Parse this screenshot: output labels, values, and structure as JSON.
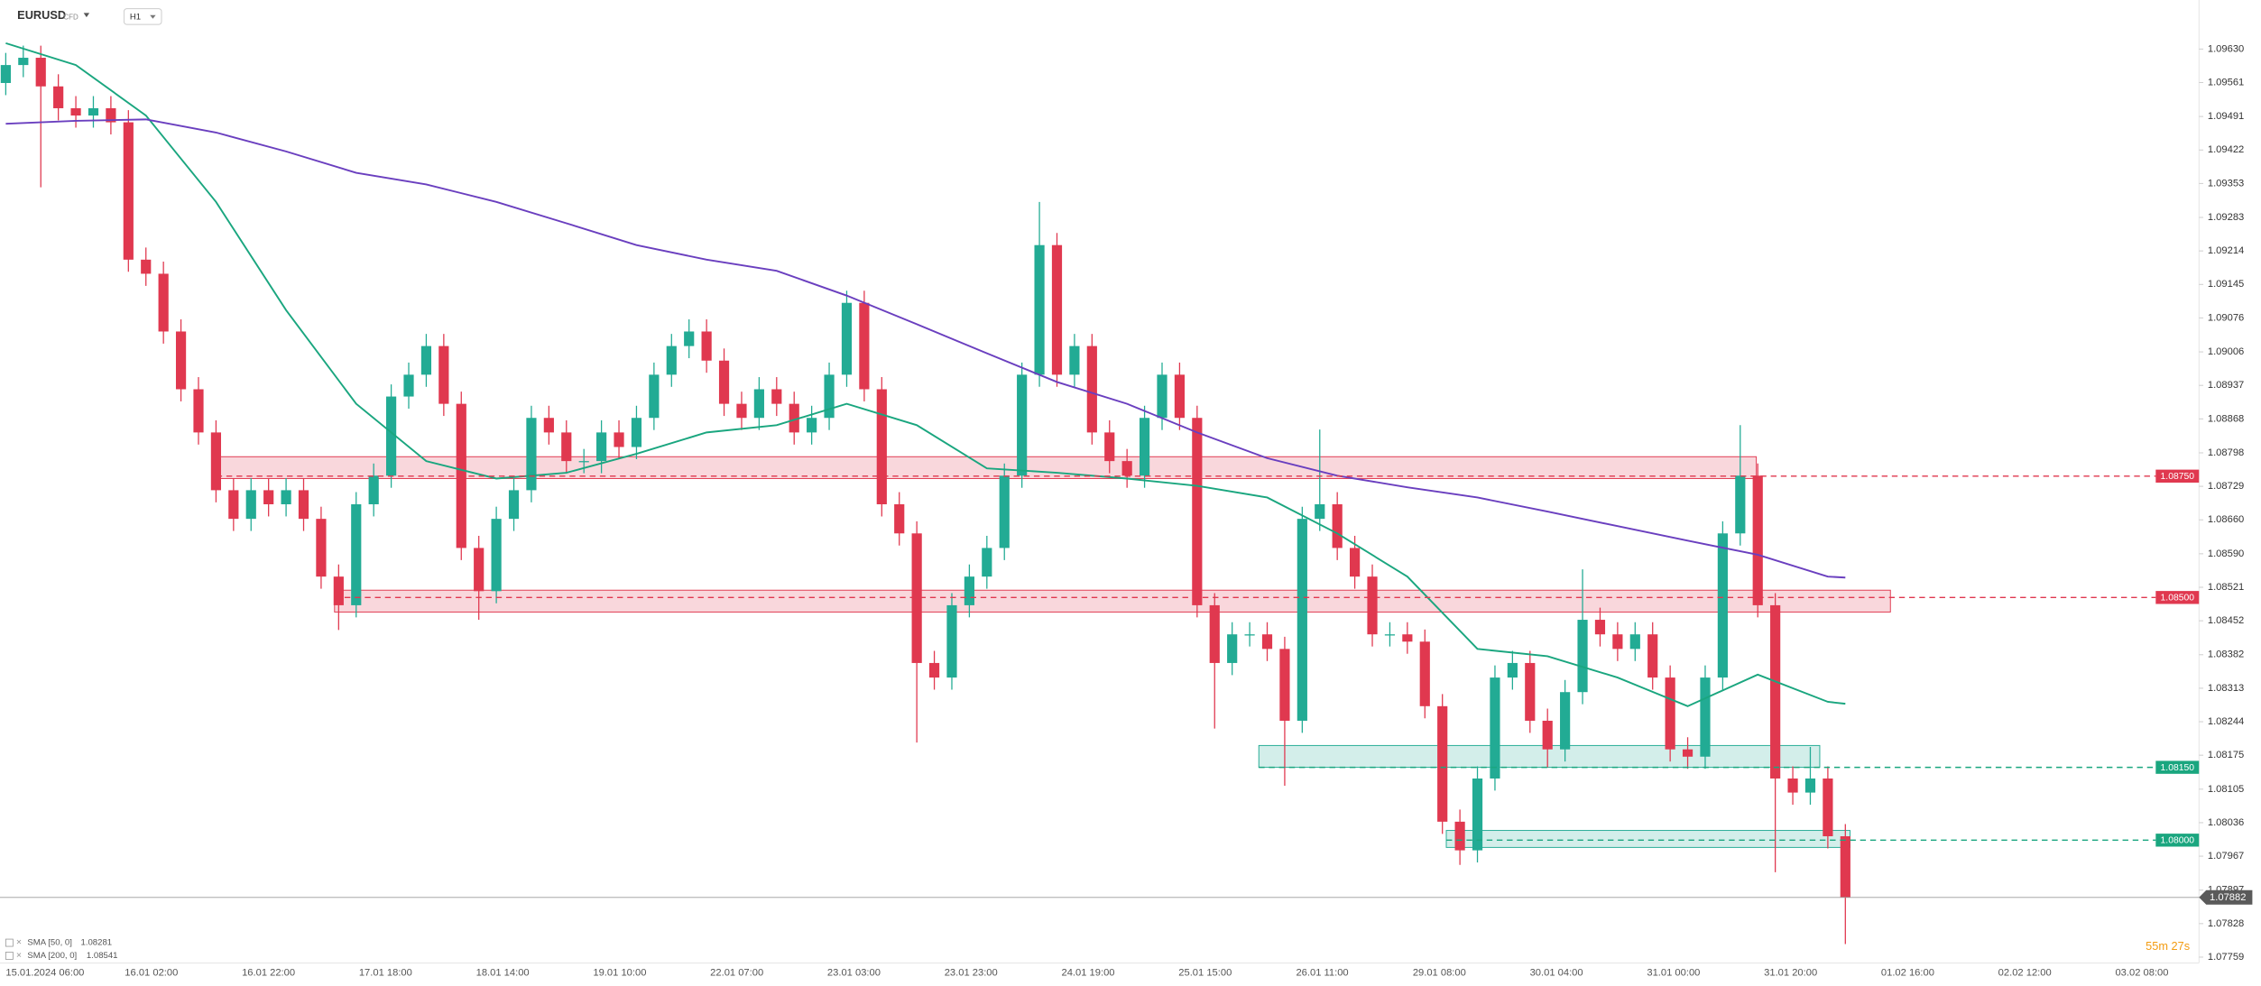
{
  "chart_data": {
    "type": "candlestick",
    "symbol": "EURUSD",
    "instrument": "CFD",
    "timeframe": "H1",
    "countdown": "55m 27s",
    "up_color": "#22ab94",
    "down_color": "#e0384f",
    "ylim": [
      1.07747,
      1.09731
    ],
    "yticks": [
      {
        "value": 1.0963,
        "label": "1.09630"
      },
      1.09561,
      1.09491,
      1.09422,
      1.09353,
      1.09283,
      1.09214,
      1.09145,
      1.09076,
      1.09006,
      1.08937,
      1.08868,
      1.08798,
      1.08729,
      {
        "value": 1.0866,
        "label": "1.08660"
      },
      {
        "value": 1.0859,
        "label": "1.08590"
      },
      1.08521,
      1.08452,
      1.08382,
      1.08313,
      1.08244,
      1.08175,
      1.08105,
      1.08036,
      1.07967,
      1.07897,
      1.07828,
      1.07759
    ],
    "x_labels": [
      "15.01.2024 06:00",
      "16.01 02:00",
      "16.01 22:00",
      "17.01 18:00",
      "18.01 14:00",
      "19.01 10:00",
      "22.01 07:00",
      "23.01 03:00",
      "23.01 23:00",
      "24.01 19:00",
      "25.01 15:00",
      "26.01 11:00",
      "29.01 08:00",
      "30.01 04:00",
      "31.01 00:00",
      "31.01 20:00",
      "01.02 16:00",
      "02.02 12:00",
      "03.02 08:00"
    ],
    "open": [
      1.0956,
      1.09597,
      1.09612,
      1.09553,
      1.09508,
      1.09493,
      1.09508,
      1.09479,
      1.09196,
      1.09167,
      1.09048,
      1.08929,
      1.0884,
      1.08721,
      1.08662,
      1.08721,
      1.08692,
      1.08721,
      1.08662,
      1.08543,
      1.08484,
      1.08692,
      1.08751,
      1.08914,
      1.08959,
      1.09018,
      1.08899,
      1.08602,
      1.08513,
      1.08662,
      1.08721,
      1.0887,
      1.0884,
      1.08781,
      1.08781,
      1.0884,
      1.0881,
      1.0887,
      1.08959,
      1.09018,
      1.09048,
      1.08988,
      1.08899,
      1.0887,
      1.08929,
      1.08899,
      1.0884,
      1.0887,
      1.08959,
      1.09107,
      1.08929,
      1.08692,
      1.08632,
      1.08365,
      1.08335,
      1.08484,
      1.08543,
      1.08602,
      1.08751,
      1.08959,
      1.09226,
      1.08959,
      1.09018,
      1.0884,
      1.08781,
      1.08751,
      1.0887,
      1.08959,
      1.0887,
      1.08484,
      1.08365,
      1.08424,
      1.08424,
      1.08394,
      1.08246,
      1.08662,
      1.08692,
      1.08602,
      1.08543,
      1.08424,
      1.08424,
      1.08409,
      1.08276,
      1.08038,
      1.07979,
      1.08127,
      1.08335,
      1.08365,
      1.08246,
      1.08187,
      1.08305,
      1.08454,
      1.08424,
      1.08394,
      1.08424,
      1.08335,
      1.08187,
      1.08172,
      1.08335,
      1.08632,
      1.08751,
      1.08484,
      1.08127,
      1.08098,
      1.08127,
      1.08008
    ],
    "high": [
      1.09622,
      1.09637,
      1.09637,
      1.09578,
      1.09533,
      1.09533,
      1.09533,
      1.09504,
      1.09221,
      1.09192,
      1.09073,
      1.08954,
      1.08865,
      1.08746,
      1.08746,
      1.08746,
      1.08746,
      1.08746,
      1.08687,
      1.08568,
      1.08717,
      1.08776,
      1.08939,
      1.08984,
      1.09043,
      1.09043,
      1.08924,
      1.08627,
      1.08687,
      1.08746,
      1.08895,
      1.08895,
      1.08865,
      1.08806,
      1.08865,
      1.08865,
      1.08895,
      1.08984,
      1.09043,
      1.09073,
      1.09073,
      1.09013,
      1.08924,
      1.08954,
      1.08954,
      1.08924,
      1.08895,
      1.08984,
      1.09132,
      1.09132,
      1.08954,
      1.08717,
      1.08657,
      1.0839,
      1.08509,
      1.08568,
      1.08627,
      1.08776,
      1.08984,
      1.09315,
      1.09251,
      1.09043,
      1.09043,
      1.08865,
      1.08806,
      1.08895,
      1.08984,
      1.08984,
      1.08895,
      1.08509,
      1.08449,
      1.08449,
      1.08449,
      1.08419,
      1.08687,
      1.08846,
      1.08717,
      1.08627,
      1.08568,
      1.08449,
      1.08449,
      1.08434,
      1.08301,
      1.08063,
      1.08152,
      1.0836,
      1.0839,
      1.0839,
      1.08271,
      1.0833,
      1.08558,
      1.08479,
      1.08449,
      1.08449,
      1.08449,
      1.0836,
      1.08212,
      1.0836,
      1.08657,
      1.08855,
      1.08776,
      1.08509,
      1.08152,
      1.08192,
      1.08152,
      1.08033
    ],
    "low": [
      1.09535,
      1.09572,
      1.09345,
      1.09483,
      1.09468,
      1.09468,
      1.09454,
      1.09171,
      1.09142,
      1.09023,
      1.08904,
      1.08815,
      1.08696,
      1.08637,
      1.08637,
      1.08667,
      1.08667,
      1.08637,
      1.08518,
      1.08433,
      1.08459,
      1.08667,
      1.08726,
      1.08889,
      1.08934,
      1.08874,
      1.08577,
      1.08454,
      1.08488,
      1.08637,
      1.08696,
      1.08815,
      1.08756,
      1.08756,
      1.08756,
      1.08785,
      1.08785,
      1.08845,
      1.08934,
      1.08993,
      1.08963,
      1.08874,
      1.08845,
      1.08845,
      1.08874,
      1.08815,
      1.08815,
      1.08845,
      1.08934,
      1.08904,
      1.08667,
      1.08607,
      1.08201,
      1.0831,
      1.0831,
      1.08459,
      1.08518,
      1.08577,
      1.08726,
      1.08934,
      1.08934,
      1.08934,
      1.08815,
      1.08756,
      1.08726,
      1.08726,
      1.08845,
      1.08845,
      1.08459,
      1.0823,
      1.0834,
      1.08399,
      1.08369,
      1.08112,
      1.08221,
      1.08637,
      1.08577,
      1.08518,
      1.08399,
      1.08399,
      1.08384,
      1.08251,
      1.08013,
      1.07949,
      1.07954,
      1.08102,
      1.0831,
      1.08221,
      1.0815,
      1.08162,
      1.0828,
      1.08399,
      1.08369,
      1.08369,
      1.0831,
      1.08162,
      1.08147,
      1.08147,
      1.0831,
      1.08607,
      1.08459,
      1.07934,
      1.08073,
      1.08073,
      1.07983,
      1.07786
    ],
    "close": [
      1.09597,
      1.09612,
      1.09553,
      1.09508,
      1.09493,
      1.09508,
      1.09479,
      1.09196,
      1.09167,
      1.09048,
      1.08929,
      1.0884,
      1.08721,
      1.08662,
      1.08721,
      1.08692,
      1.08721,
      1.08662,
      1.08543,
      1.08484,
      1.08692,
      1.08751,
      1.08914,
      1.08959,
      1.09018,
      1.08899,
      1.08602,
      1.08513,
      1.08662,
      1.08721,
      1.0887,
      1.0884,
      1.08781,
      1.08781,
      1.0884,
      1.0881,
      1.0887,
      1.08959,
      1.09018,
      1.09048,
      1.08988,
      1.08899,
      1.0887,
      1.08929,
      1.08899,
      1.0884,
      1.0887,
      1.08959,
      1.09107,
      1.08929,
      1.08692,
      1.08632,
      1.08365,
      1.08335,
      1.08484,
      1.08543,
      1.08602,
      1.08751,
      1.08959,
      1.09226,
      1.08959,
      1.09018,
      1.0884,
      1.08781,
      1.08751,
      1.0887,
      1.08959,
      1.0887,
      1.08484,
      1.08365,
      1.08424,
      1.08424,
      1.08394,
      1.08246,
      1.08662,
      1.08692,
      1.08602,
      1.08543,
      1.08424,
      1.08424,
      1.08409,
      1.08276,
      1.08038,
      1.07979,
      1.08127,
      1.08335,
      1.08365,
      1.08246,
      1.08187,
      1.08305,
      1.08454,
      1.08424,
      1.08394,
      1.08424,
      1.08335,
      1.08187,
      1.08172,
      1.08335,
      1.08632,
      1.08751,
      1.08484,
      1.08127,
      1.08098,
      1.08127,
      1.08008,
      1.07882
    ],
    "series": [
      {
        "name": "SMA [50, 0]",
        "last_value": 1.08281,
        "color": "#1aa67f",
        "x": [
          0,
          4,
          8,
          12,
          16,
          20,
          24,
          28,
          32,
          36,
          40,
          44,
          48,
          52,
          56,
          60,
          64,
          68,
          72,
          76,
          80,
          84,
          88,
          92,
          96,
          100,
          104,
          105
        ],
        "values": [
          1.09642,
          1.09597,
          1.09493,
          1.09315,
          1.09092,
          1.08899,
          1.08781,
          1.08745,
          1.08757,
          1.08796,
          1.0884,
          1.08855,
          1.08899,
          1.08855,
          1.08766,
          1.08757,
          1.08745,
          1.0873,
          1.08706,
          1.08632,
          1.08543,
          1.08394,
          1.08379,
          1.08335,
          1.08276,
          1.08341,
          1.08285,
          1.08281
        ]
      },
      {
        "name": "SMA [200, 0]",
        "last_value": 1.08541,
        "color": "#6a3fbf",
        "x": [
          0,
          4,
          8,
          12,
          16,
          20,
          24,
          28,
          32,
          36,
          40,
          44,
          48,
          52,
          56,
          60,
          64,
          68,
          72,
          76,
          80,
          84,
          88,
          92,
          96,
          100,
          104,
          105
        ],
        "values": [
          1.09476,
          1.09482,
          1.09485,
          1.09458,
          1.09419,
          1.09375,
          1.09351,
          1.09315,
          1.09271,
          1.09226,
          1.09196,
          1.09173,
          1.09122,
          1.09063,
          1.09003,
          1.08944,
          1.08899,
          1.0884,
          1.08787,
          1.08751,
          1.08727,
          1.08706,
          1.08677,
          1.08647,
          1.08617,
          1.08588,
          1.08543,
          1.08541
        ]
      }
    ],
    "zones": [
      {
        "top": 1.0879,
        "bottom": 1.08745,
        "color": "#e0384f"
      },
      {
        "top": 1.08515,
        "bottom": 1.0847,
        "color": "#e0384f"
      },
      {
        "top": 1.08195,
        "bottom": 1.0815,
        "color": "#22ab94"
      },
      {
        "top": 1.0802,
        "bottom": 1.07985,
        "color": "#22ab94"
      }
    ],
    "levels": [
      {
        "value": 1.0875,
        "label": "1.08750",
        "color": "#e0384f"
      },
      {
        "value": 1.085,
        "label": "1.08500",
        "color": "#e0384f"
      },
      {
        "value": 1.0815,
        "label": "1.08150",
        "color": "#1aa67f"
      },
      {
        "value": 1.08,
        "label": "1.08000",
        "color": "#1aa67f"
      }
    ],
    "current_price": 1.07882
  }
}
